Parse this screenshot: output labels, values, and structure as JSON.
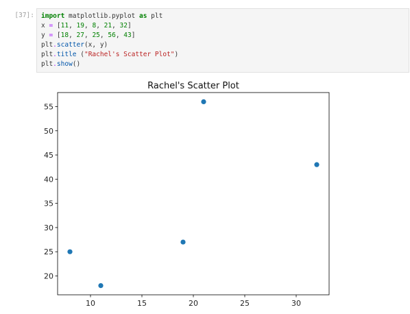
{
  "cell": {
    "prompt": "[37]:",
    "lines": [
      [
        {
          "t": "import",
          "c": "kw"
        },
        {
          "t": " matplotlib.pyplot ",
          "c": ""
        },
        {
          "t": "as",
          "c": "kw"
        },
        {
          "t": " plt",
          "c": ""
        }
      ],
      [
        {
          "t": "x ",
          "c": ""
        },
        {
          "t": "=",
          "c": "op"
        },
        {
          "t": " [",
          "c": ""
        },
        {
          "t": "11",
          "c": "num"
        },
        {
          "t": ", ",
          "c": ""
        },
        {
          "t": "19",
          "c": "num"
        },
        {
          "t": ", ",
          "c": ""
        },
        {
          "t": "8",
          "c": "num"
        },
        {
          "t": ", ",
          "c": ""
        },
        {
          "t": "21",
          "c": "num"
        },
        {
          "t": ", ",
          "c": ""
        },
        {
          "t": "32",
          "c": "num"
        },
        {
          "t": "]",
          "c": ""
        }
      ],
      [
        {
          "t": "y ",
          "c": ""
        },
        {
          "t": "=",
          "c": "op"
        },
        {
          "t": " [",
          "c": ""
        },
        {
          "t": "18",
          "c": "num"
        },
        {
          "t": ", ",
          "c": ""
        },
        {
          "t": "27",
          "c": "num"
        },
        {
          "t": ", ",
          "c": ""
        },
        {
          "t": "25",
          "c": "num"
        },
        {
          "t": ", ",
          "c": ""
        },
        {
          "t": "56",
          "c": "num"
        },
        {
          "t": ", ",
          "c": ""
        },
        {
          "t": "43",
          "c": "num"
        },
        {
          "t": "]",
          "c": ""
        }
      ],
      [
        {
          "t": "plt",
          "c": ""
        },
        {
          "t": ".",
          "c": "op"
        },
        {
          "t": "scatter",
          "c": "fn"
        },
        {
          "t": "(x, y)",
          "c": ""
        }
      ],
      [
        {
          "t": "plt",
          "c": ""
        },
        {
          "t": ".",
          "c": "op"
        },
        {
          "t": "title",
          "c": "fn"
        },
        {
          "t": " (",
          "c": ""
        },
        {
          "t": "\"Rachel's Scatter Plot\"",
          "c": "str"
        },
        {
          "t": ")",
          "c": ""
        }
      ],
      [
        {
          "t": "plt",
          "c": ""
        },
        {
          "t": ".",
          "c": "op"
        },
        {
          "t": "show",
          "c": "fn"
        },
        {
          "t": "()",
          "c": ""
        }
      ]
    ]
  },
  "colors": {
    "marker": "#1f77b4",
    "axes": "#000000"
  },
  "chart_data": {
    "type": "scatter",
    "title": "Rachel's Scatter Plot",
    "xlabel": "",
    "ylabel": "",
    "x": [
      11,
      19,
      8,
      21,
      32
    ],
    "y": [
      18,
      27,
      25,
      56,
      43
    ],
    "xlim": [
      6.8,
      33.2
    ],
    "ylim": [
      16.1,
      57.9
    ],
    "xticks": [
      10,
      15,
      20,
      25,
      30
    ],
    "yticks": [
      20,
      25,
      30,
      35,
      40,
      45,
      50,
      55
    ],
    "xtick_labels": [
      "10",
      "15",
      "20",
      "25",
      "30"
    ],
    "ytick_labels": [
      "20",
      "25",
      "30",
      "35",
      "40",
      "45",
      "50",
      "55"
    ],
    "grid": false
  }
}
